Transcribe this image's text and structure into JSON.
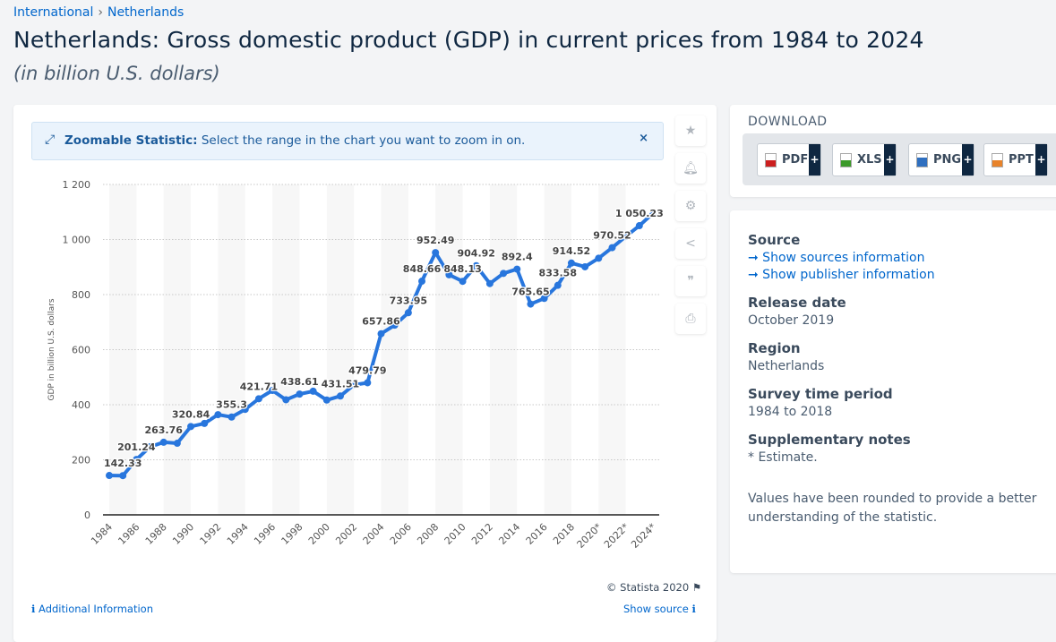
{
  "breadcrumb": [
    "International",
    "Netherlands"
  ],
  "title": "Netherlands: Gross domestic product (GDP) in current prices from 1984 to 2024",
  "subtitle": "(in billion U.S. dollars)",
  "zoom_banner": {
    "bold": "Zoomable Statistic:",
    "text": " Select the range in the chart you want to zoom in on.",
    "close": "×"
  },
  "toolbar_icons": [
    "star-icon",
    "bell-icon",
    "gear-icon",
    "share-icon",
    "quote-icon",
    "print-icon"
  ],
  "chart_data": {
    "type": "line",
    "title": "",
    "xlabel": "",
    "ylabel": "GDP in billion U.S. dollars",
    "ylim": [
      0,
      1200
    ],
    "yticks": [
      0,
      200,
      400,
      600,
      800,
      "1 000",
      "1 200"
    ],
    "grid": true,
    "color": "#2876dd",
    "x": [
      1984,
      1985,
      1986,
      1987,
      1988,
      1989,
      1990,
      1991,
      1992,
      1993,
      1994,
      1995,
      1996,
      1997,
      1998,
      1999,
      2000,
      2001,
      2002,
      2003,
      2004,
      2005,
      2006,
      2007,
      2008,
      2009,
      2010,
      2011,
      2012,
      2013,
      2014,
      2015,
      2016,
      2017,
      2018,
      2019,
      2020,
      2021,
      2022,
      2023,
      2024
    ],
    "xticklabels": [
      "1984",
      "1986",
      "1988",
      "1990",
      "1992",
      "1994",
      "1996",
      "1998",
      "2000",
      "2002",
      "2004",
      "2006",
      "2008",
      "2010",
      "2012",
      "2014",
      "2016",
      "2018",
      "2020*",
      "2022*",
      "2024*"
    ],
    "values": [
      143,
      142.33,
      201.24,
      247,
      263.76,
      260,
      320.84,
      332,
      364,
      355.3,
      383,
      421.71,
      452,
      418,
      438.61,
      449,
      417,
      431.51,
      472,
      479.79,
      657.86,
      689,
      733.95,
      848.66,
      952.49,
      872,
      848.13,
      904.92,
      840,
      877,
      892.4,
      765.65,
      786,
      833.58,
      914.52,
      901,
      932,
      970.52,
      1011,
      1050.23,
      1095
    ],
    "data_labels": [
      {
        "year": 1985,
        "text": "142.33"
      },
      {
        "year": 1986,
        "text": "201.24"
      },
      {
        "year": 1988,
        "text": "263.76"
      },
      {
        "year": 1990,
        "text": "320.84"
      },
      {
        "year": 1993,
        "text": "355.3"
      },
      {
        "year": 1995,
        "text": "421.71"
      },
      {
        "year": 1998,
        "text": "438.61"
      },
      {
        "year": 2001,
        "text": "431.51"
      },
      {
        "year": 2003,
        "text": "479.79"
      },
      {
        "year": 2004,
        "text": "657.86"
      },
      {
        "year": 2006,
        "text": "733.95"
      },
      {
        "year": 2007,
        "text": "848.66"
      },
      {
        "year": 2008,
        "text": "952.49"
      },
      {
        "year": 2010,
        "text": "848.13"
      },
      {
        "year": 2011,
        "text": "904.92"
      },
      {
        "year": 2014,
        "text": "892.4"
      },
      {
        "year": 2015,
        "text": "765.65"
      },
      {
        "year": 2017,
        "text": "833.58"
      },
      {
        "year": 2018,
        "text": "914.52"
      },
      {
        "year": 2021,
        "text": "970.52"
      },
      {
        "year": 2023,
        "text": "1 050.23"
      }
    ]
  },
  "copyright": "© Statista 2020",
  "footer": {
    "additional": "Additional Information",
    "show_source": "Show source"
  },
  "download": {
    "heading": "DOWNLOAD",
    "buttons": [
      {
        "label": "PDF",
        "color": "#cc1f1f"
      },
      {
        "label": "XLS",
        "color": "#3c9a2a"
      },
      {
        "label": "PNG",
        "color": "#2f6fbf"
      },
      {
        "label": "PPT",
        "color": "#e8832a"
      }
    ],
    "plus": "+"
  },
  "info": {
    "source_heading": "Source",
    "sources_link": "➞ Show sources information",
    "publisher_link": "➞ Show publisher information",
    "release_heading": "Release date",
    "release": "October 2019",
    "region_heading": "Region",
    "region": "Netherlands",
    "survey_heading": "Survey time period",
    "survey": "1984 to 2018",
    "notes_heading": "Supplementary notes",
    "notes": "* Estimate.",
    "rounding": "Values have been rounded to provide a better understanding of the statistic."
  }
}
